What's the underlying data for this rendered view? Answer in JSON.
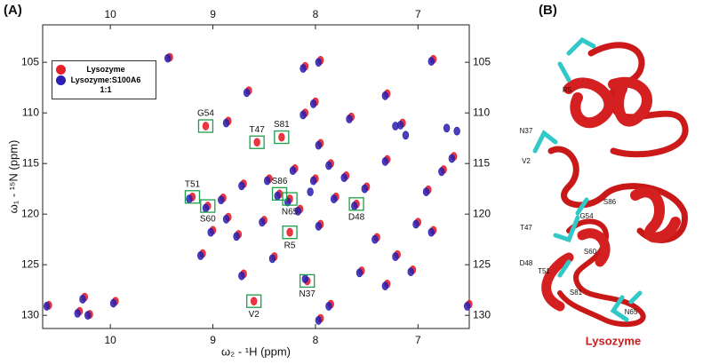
{
  "panel_labels": [
    "(A)",
    "(B)"
  ],
  "chart_data": {
    "type": "scatter",
    "x_label": "ω₂ - ¹H  (ppm)",
    "y_label": "ω₁ - ¹⁵N (ppm)",
    "xlim": [
      10.66,
      6.5
    ],
    "ylim": [
      131.3,
      101.3
    ],
    "xticks": [
      10,
      9,
      8,
      7
    ],
    "yticks": [
      105,
      110,
      115,
      120,
      125,
      130
    ],
    "legend": "upper left",
    "series": [
      {
        "name": "Lysozyme",
        "color": "#e8202a",
        "x": [
          10.6,
          10.25,
          10.3,
          10.2,
          9.95,
          9.42,
          9.07,
          8.85,
          9.2,
          9.05,
          8.9,
          8.85,
          9.0,
          9.1,
          8.75,
          8.7,
          8.57,
          8.6,
          8.33,
          8.35,
          8.25,
          8.25,
          8.08,
          7.6,
          8.1,
          8.0,
          7.95,
          7.85,
          7.7,
          7.5,
          7.3,
          7.15,
          7.0,
          6.85,
          6.9,
          6.75,
          6.65,
          7.4,
          7.2,
          7.55,
          7.85,
          7.95,
          8.4,
          8.5,
          8.15,
          7.95,
          7.8,
          8.0,
          8.2,
          8.45,
          8.7,
          7.65,
          7.3,
          6.5,
          7.3,
          7.05,
          8.1,
          6.85,
          7.95,
          8.65
        ],
        "y": [
          129.0,
          128.2,
          129.6,
          129.9,
          128.6,
          104.5,
          111.3,
          110.8,
          118.3,
          119.2,
          118.4,
          120.3,
          121.6,
          123.9,
          122.0,
          125.9,
          112.9,
          128.6,
          112.4,
          118.0,
          118.5,
          121.8,
          126.6,
          119.0,
          110.0,
          108.9,
          113.0,
          115.0,
          116.2,
          117.3,
          114.6,
          111.0,
          120.8,
          121.6,
          117.6,
          115.6,
          114.3,
          122.3,
          124.0,
          125.6,
          128.9,
          130.3,
          124.2,
          120.6,
          119.5,
          121.0,
          118.3,
          116.5,
          115.5,
          116.5,
          117.0,
          110.4,
          108.1,
          128.9,
          126.9,
          125.5,
          105.4,
          104.7,
          104.8,
          107.8
        ]
      },
      {
        "name": "Lysozyme:S100A6 1:1",
        "color": "#2a1fb0",
        "x": [
          10.62,
          10.27,
          10.32,
          10.22,
          9.97,
          9.44,
          8.87,
          9.23,
          9.07,
          8.92,
          8.87,
          9.02,
          9.12,
          8.77,
          8.72,
          8.37,
          8.27,
          8.1,
          7.62,
          8.12,
          8.02,
          7.97,
          7.87,
          7.72,
          7.52,
          7.32,
          7.17,
          7.02,
          6.87,
          6.92,
          6.77,
          6.67,
          7.42,
          7.22,
          7.57,
          7.87,
          7.97,
          8.42,
          8.52,
          8.17,
          7.97,
          7.82,
          8.02,
          8.22,
          8.47,
          8.72,
          7.67,
          7.32,
          6.52,
          7.32,
          7.07,
          8.12,
          6.87,
          7.97,
          8.67,
          6.72,
          6.62,
          7.22,
          7.12,
          8.05
        ],
        "y": [
          129.1,
          128.4,
          129.8,
          130.0,
          128.8,
          104.6,
          111.0,
          118.5,
          119.4,
          118.6,
          120.5,
          121.8,
          124.1,
          122.2,
          126.1,
          118.2,
          118.8,
          126.4,
          119.2,
          110.2,
          109.1,
          113.2,
          115.2,
          116.4,
          117.5,
          114.8,
          111.2,
          121.0,
          121.8,
          117.8,
          115.8,
          114.5,
          122.5,
          124.2,
          125.8,
          129.1,
          130.5,
          124.4,
          120.8,
          119.7,
          121.2,
          118.5,
          116.7,
          115.7,
          116.7,
          117.2,
          110.6,
          108.3,
          129.1,
          127.1,
          125.7,
          105.6,
          104.9,
          105.0,
          108.0,
          111.5,
          111.8,
          111.3,
          112.2,
          117.8
        ]
      }
    ],
    "annotations": [
      {
        "label": "G54",
        "x": 9.07,
        "y": 111.3
      },
      {
        "label": "T47",
        "x": 8.57,
        "y": 112.9
      },
      {
        "label": "S81",
        "x": 8.33,
        "y": 112.4
      },
      {
        "label": "T51",
        "x": 9.2,
        "y": 118.3
      },
      {
        "label": "S60",
        "x": 9.05,
        "y": 119.2
      },
      {
        "label": "S86",
        "x": 8.35,
        "y": 118.0
      },
      {
        "label": "N65",
        "x": 8.25,
        "y": 118.5
      },
      {
        "label": "D48",
        "x": 7.6,
        "y": 119.0
      },
      {
        "label": "R5",
        "x": 8.25,
        "y": 121.8
      },
      {
        "label": "N37",
        "x": 8.08,
        "y": 126.6
      },
      {
        "label": "V2",
        "x": 8.6,
        "y": 128.6
      }
    ]
  },
  "structure": {
    "title": "Lysozyme",
    "residues": [
      "R5",
      "N37",
      "V2",
      "T47",
      "G54",
      "S86",
      "D48",
      "S60",
      "T51",
      "S81",
      "N65"
    ]
  }
}
